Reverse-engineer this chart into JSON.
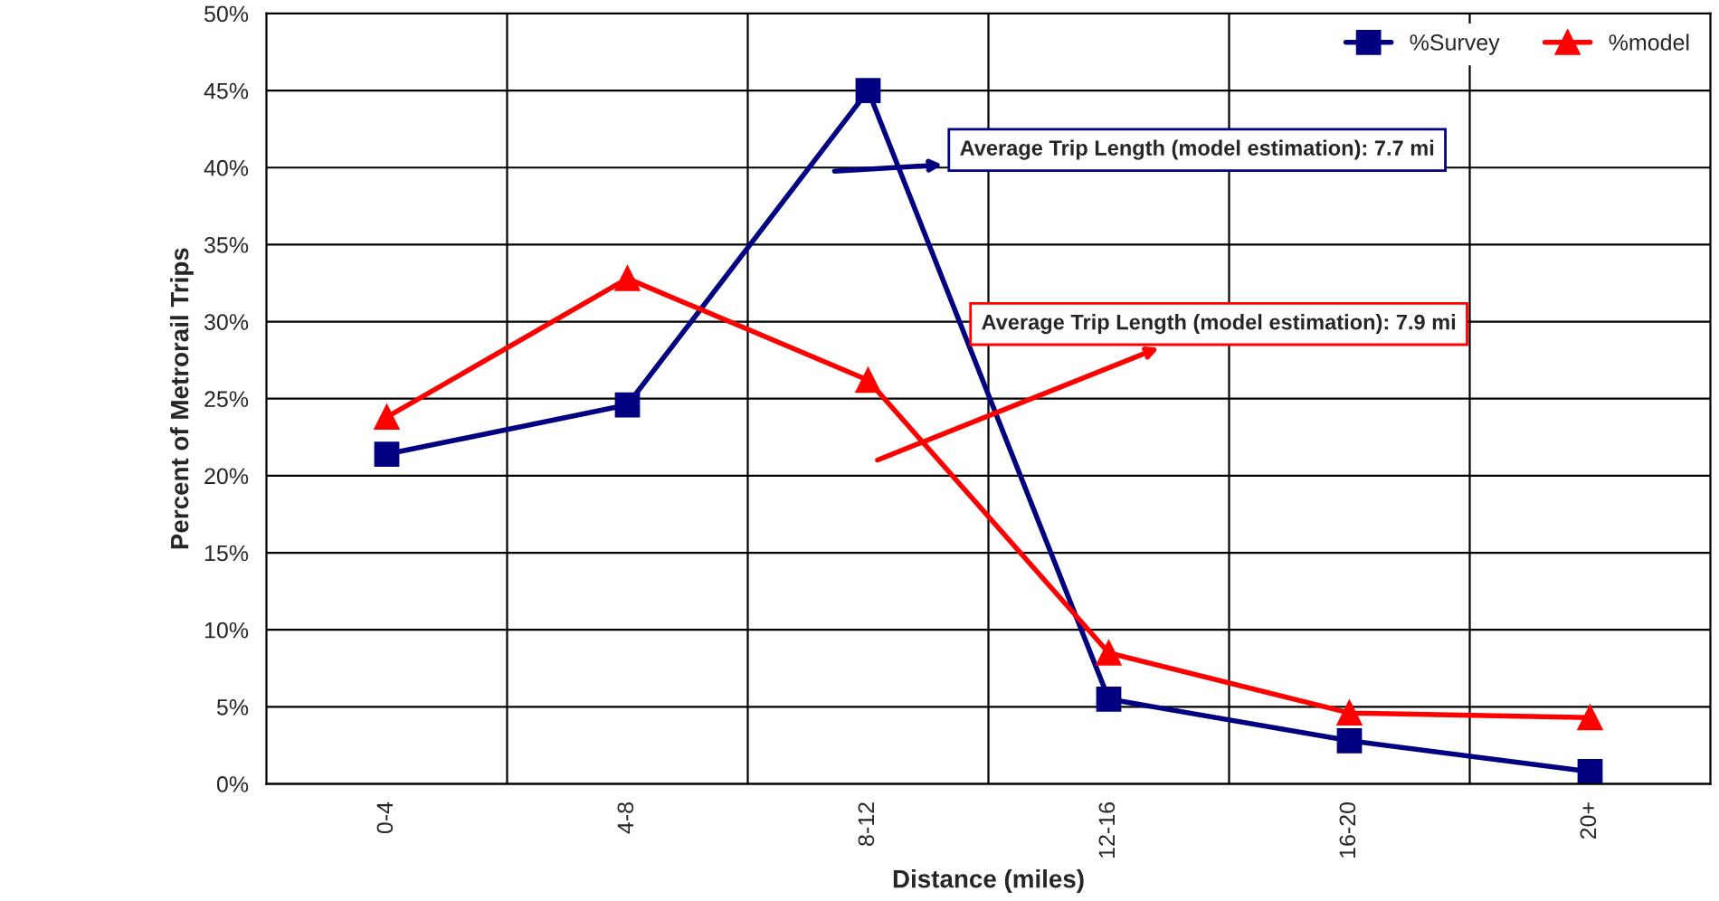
{
  "chart_data": {
    "type": "line",
    "xlabel": "Distance (miles)",
    "ylabel": "Percent of Metrorail Trips",
    "categories": [
      "0-4",
      "4-8",
      "8-12",
      "12-16",
      "16-20",
      "20+"
    ],
    "series": [
      {
        "name": "%Survey",
        "color": "#000080",
        "marker": "square",
        "values": [
          21.4,
          24.6,
          45.0,
          5.5,
          2.8,
          0.8
        ]
      },
      {
        "name": "%model",
        "color": "#ff0000",
        "marker": "triangle",
        "values": [
          23.8,
          32.8,
          26.2,
          8.5,
          4.6,
          4.3
        ]
      }
    ],
    "ylim": [
      0,
      50
    ],
    "yticks": [
      {
        "value": 0,
        "label": "0%"
      },
      {
        "value": 5,
        "label": "5%"
      },
      {
        "value": 10,
        "label": "10%"
      },
      {
        "value": 15,
        "label": "15%"
      },
      {
        "value": 20,
        "label": "20%"
      },
      {
        "value": 25,
        "label": "25%"
      },
      {
        "value": 30,
        "label": "30%"
      },
      {
        "value": 35,
        "label": "35%"
      },
      {
        "value": 40,
        "label": "40%"
      },
      {
        "value": 45,
        "label": "45%"
      },
      {
        "value": 50,
        "label": "50%"
      }
    ],
    "annotations": [
      "Average Trip Length (model estimation): 7.7 mi",
      "Average Trip Length (model estimation): 7.9 mi"
    ],
    "grid": true,
    "legend": "top right",
    "line_style": "solid"
  }
}
